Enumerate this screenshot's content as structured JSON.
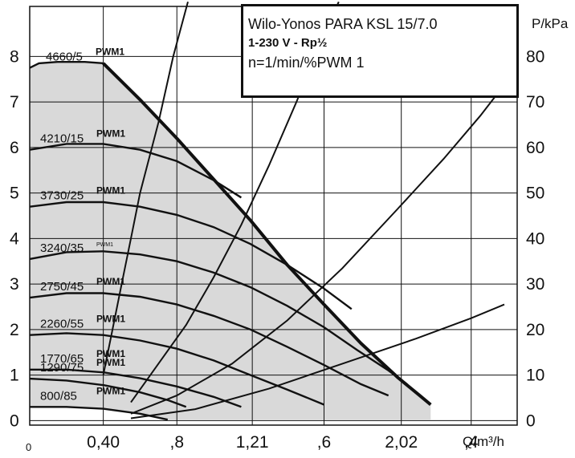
{
  "chart_data": {
    "type": "line",
    "title_lines": [
      "Wilo-Yonos PARA KSL 15/7.0",
      "1-230 V - Rp½",
      "n=1/min/%PWM 1"
    ],
    "xlabel": "Q/m³/h",
    "ylabel_right": "P/kPa",
    "x_ticks": [
      "0",
      "0,40",
      ",8",
      "1,21",
      ",6",
      "2,02",
      ",4"
    ],
    "x_tick_values": [
      0,
      0.4,
      0.8,
      1.21,
      1.6,
      2.02,
      2.4
    ],
    "y_left_ticks": [
      "0",
      "1",
      "2",
      "3",
      "4",
      "5",
      "6",
      "7",
      "8"
    ],
    "y_left_tick_values": [
      0,
      1,
      2,
      3,
      4,
      5,
      6,
      7,
      8
    ],
    "y_right_ticks": [
      "0",
      "10",
      "20",
      "30",
      "40",
      "50",
      "60",
      "70",
      "80"
    ],
    "y_right_tick_values": [
      0,
      1,
      2,
      3,
      4,
      5,
      6,
      7,
      8
    ],
    "xlim": [
      0,
      2.65
    ],
    "ylim": [
      -0.1,
      9.1
    ],
    "grid": true,
    "speed_curves": [
      {
        "label": "4660/5",
        "pwm": "PWM1",
        "points": [
          [
            0,
            7.75
          ],
          [
            0.05,
            7.85
          ],
          [
            0.15,
            7.88
          ],
          [
            0.3,
            7.88
          ],
          [
            0.4,
            7.85
          ]
        ]
      },
      {
        "label": "4210/15",
        "pwm": "PWM1",
        "points": [
          [
            0,
            5.95
          ],
          [
            0.2,
            6.08
          ],
          [
            0.4,
            6.08
          ],
          [
            0.6,
            5.95
          ],
          [
            0.8,
            5.7
          ],
          [
            1.0,
            5.28
          ],
          [
            1.15,
            4.9
          ]
        ]
      },
      {
        "label": "3730/25",
        "pwm": "PWM1",
        "points": [
          [
            0,
            4.7
          ],
          [
            0.2,
            4.8
          ],
          [
            0.4,
            4.8
          ],
          [
            0.6,
            4.7
          ],
          [
            0.8,
            4.52
          ],
          [
            1.0,
            4.25
          ],
          [
            1.2,
            3.88
          ],
          [
            1.4,
            3.42
          ],
          [
            1.6,
            2.9
          ],
          [
            1.75,
            2.45
          ]
        ]
      },
      {
        "label": "3240/35",
        "pwm": "PWM1",
        "points": [
          [
            0,
            3.55
          ],
          [
            0.2,
            3.7
          ],
          [
            0.4,
            3.72
          ],
          [
            0.6,
            3.65
          ],
          [
            0.8,
            3.5
          ],
          [
            1.0,
            3.25
          ],
          [
            1.2,
            2.93
          ],
          [
            1.4,
            2.52
          ],
          [
            1.6,
            2.05
          ],
          [
            1.78,
            1.55
          ],
          [
            1.95,
            1.1
          ],
          [
            2.05,
            0.8
          ]
        ]
      },
      {
        "label": "2750/45",
        "pwm": "PWM1",
        "points": [
          [
            0,
            2.7
          ],
          [
            0.2,
            2.8
          ],
          [
            0.4,
            2.8
          ],
          [
            0.6,
            2.72
          ],
          [
            0.8,
            2.55
          ],
          [
            1.0,
            2.3
          ],
          [
            1.2,
            2.0
          ],
          [
            1.4,
            1.62
          ],
          [
            1.6,
            1.22
          ],
          [
            1.8,
            0.8
          ],
          [
            1.95,
            0.55
          ]
        ]
      },
      {
        "label": "2260/55",
        "pwm": "PWM1",
        "points": [
          [
            0,
            1.88
          ],
          [
            0.2,
            1.92
          ],
          [
            0.4,
            1.88
          ],
          [
            0.6,
            1.76
          ],
          [
            0.8,
            1.58
          ],
          [
            1.0,
            1.32
          ],
          [
            1.2,
            1.0
          ],
          [
            1.4,
            0.68
          ],
          [
            1.6,
            0.35
          ]
        ]
      },
      {
        "label": "1770/65",
        "pwm": "PWM1",
        "points": [
          [
            0,
            1.12
          ],
          [
            0.2,
            1.12
          ],
          [
            0.4,
            1.06
          ],
          [
            0.6,
            0.93
          ],
          [
            0.8,
            0.75
          ],
          [
            1.0,
            0.52
          ],
          [
            1.15,
            0.3
          ]
        ]
      },
      {
        "label": "1290/75",
        "pwm": "PWM1",
        "points": [
          [
            0,
            0.92
          ],
          [
            0.2,
            0.88
          ],
          [
            0.4,
            0.78
          ],
          [
            0.6,
            0.62
          ],
          [
            0.75,
            0.45
          ],
          [
            0.85,
            0.3
          ]
        ]
      },
      {
        "label": "800/85",
        "pwm": "PWM1",
        "points": [
          [
            0,
            0.3
          ],
          [
            0.2,
            0.3
          ],
          [
            0.4,
            0.26
          ],
          [
            0.6,
            0.15
          ],
          [
            0.75,
            0.02
          ]
        ]
      }
    ],
    "max_curve": [
      [
        0.4,
        7.85
      ],
      [
        0.6,
        7.05
      ],
      [
        0.8,
        6.2
      ],
      [
        1.0,
        5.3
      ],
      [
        1.2,
        4.4
      ],
      [
        1.4,
        3.42
      ],
      [
        1.6,
        2.55
      ],
      [
        1.8,
        1.7
      ],
      [
        2.0,
        0.95
      ],
      [
        2.12,
        0.55
      ],
      [
        2.18,
        0.35
      ]
    ],
    "system_curves": [
      [
        [
          0.4,
          1.0
        ],
        [
          0.45,
          2.0
        ],
        [
          0.5,
          3.0
        ],
        [
          0.55,
          4.0
        ],
        [
          0.6,
          5.0
        ],
        [
          0.7,
          6.55
        ],
        [
          0.78,
          8.0
        ],
        [
          0.86,
          9.2
        ]
      ],
      [
        [
          0.55,
          0.4
        ],
        [
          0.7,
          1.25
        ],
        [
          0.85,
          2.1
        ],
        [
          1.0,
          3.15
        ],
        [
          1.15,
          4.3
        ],
        [
          1.3,
          5.6
        ],
        [
          1.45,
          7.0
        ],
        [
          1.58,
          8.3
        ],
        [
          1.68,
          9.2
        ]
      ],
      [
        [
          0.55,
          0.15
        ],
        [
          0.8,
          0.55
        ],
        [
          1.1,
          1.25
        ],
        [
          1.4,
          2.2
        ],
        [
          1.7,
          3.35
        ],
        [
          2.0,
          4.65
        ],
        [
          2.25,
          5.75
        ],
        [
          2.45,
          6.7
        ],
        [
          2.58,
          7.38
        ]
      ],
      [
        [
          0.55,
          0.05
        ],
        [
          0.9,
          0.25
        ],
        [
          1.3,
          0.7
        ],
        [
          1.7,
          1.25
        ],
        [
          2.1,
          1.8
        ],
        [
          2.4,
          2.25
        ],
        [
          2.58,
          2.55
        ]
      ]
    ]
  }
}
